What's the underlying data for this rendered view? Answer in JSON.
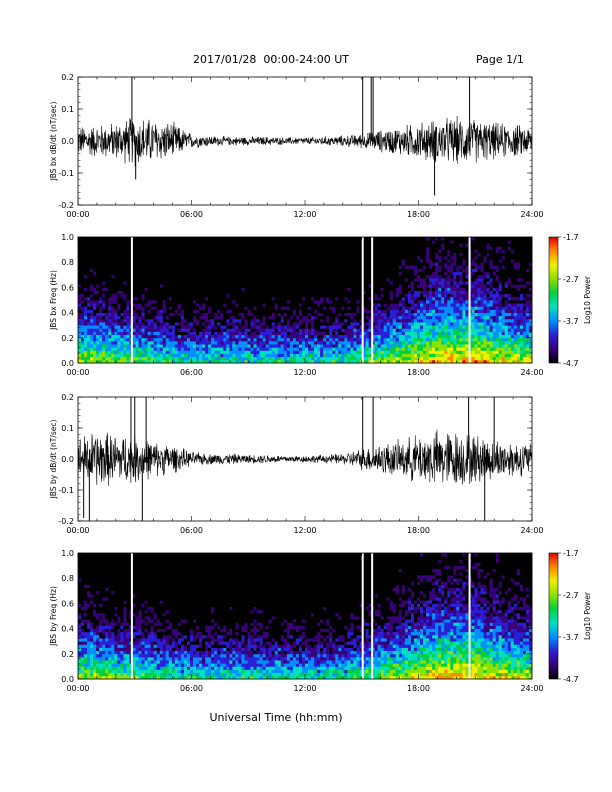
{
  "header": {
    "title": "2017/01/28  00:00-24:00 UT",
    "page": "Page 1/1"
  },
  "xlabel": "Universal Time (hh:mm)",
  "colorbar": {
    "label": "Log10 Power",
    "ticks": [
      "-1.7",
      "-2.7",
      "-3.7",
      "-4.7"
    ],
    "range": [
      -4.7,
      -1.7
    ],
    "colors": [
      "#000000",
      "#3a007a",
      "#2a1fd6",
      "#0090ff",
      "#00e0c0",
      "#00d040",
      "#90e000",
      "#f0f000",
      "#ff8800",
      "#e00000"
    ]
  },
  "chart_data": [
    {
      "type": "line",
      "panel": "jbs-bx-dbdt",
      "ylabel": "JBS bx dB/dt (nT/sec)",
      "xlim": [
        0,
        24
      ],
      "ylim": [
        -0.2,
        0.2
      ],
      "xticks": [
        "00:00",
        "06:00",
        "12:00",
        "18:00",
        "24:00"
      ],
      "yticks": [
        "0.2",
        "0.1",
        "0.0",
        "-0.1",
        "-0.2"
      ],
      "x": [
        0,
        1,
        2,
        3,
        4,
        5,
        6,
        7,
        8,
        9,
        10,
        11,
        12,
        13,
        14,
        15,
        16,
        17,
        18,
        19,
        20,
        21,
        22,
        23,
        24
      ],
      "envelope": [
        0.04,
        0.045,
        0.05,
        0.07,
        0.06,
        0.05,
        0.02,
        0.015,
        0.012,
        0.012,
        0.012,
        0.01,
        0.01,
        0.012,
        0.015,
        0.02,
        0.03,
        0.04,
        0.05,
        0.06,
        0.065,
        0.06,
        0.05,
        0.045,
        0.04
      ],
      "spikes": [
        [
          2.85,
          0.2
        ],
        [
          3.05,
          -0.12
        ],
        [
          15.05,
          0.2
        ],
        [
          15.5,
          0.2
        ],
        [
          15.6,
          0.2
        ],
        [
          18.85,
          -0.17
        ],
        [
          20.7,
          0.2
        ]
      ]
    },
    {
      "type": "heatmap",
      "panel": "jbs-bx-freq",
      "ylabel": "JBS bx Freq (Hz)",
      "xlim": [
        0,
        24
      ],
      "ylim": [
        0,
        1.0
      ],
      "xticks": [
        "00:00",
        "06:00",
        "12:00",
        "18:00",
        "24:00"
      ],
      "yticks": [
        "1.0",
        "0.8",
        "0.6",
        "0.4",
        "0.2",
        "0.0"
      ],
      "gaps": [
        2.85,
        15.05,
        15.55,
        20.7
      ]
    },
    {
      "type": "line",
      "panel": "jbs-by-dbdt",
      "ylabel": "JBS by dB/dt (nT/sec)",
      "xlim": [
        0,
        24
      ],
      "ylim": [
        -0.2,
        0.2
      ],
      "xticks": [
        "00:00",
        "06:00",
        "12:00",
        "18:00",
        "24:00"
      ],
      "yticks": [
        "0.2",
        "0.1",
        "0.0",
        "-0.1",
        "-0.2"
      ],
      "x": [
        0,
        1,
        2,
        3,
        4,
        5,
        6,
        7,
        8,
        9,
        10,
        11,
        12,
        13,
        14,
        15,
        16,
        17,
        18,
        19,
        20,
        21,
        22,
        23,
        24
      ],
      "envelope": [
        0.06,
        0.08,
        0.07,
        0.07,
        0.05,
        0.04,
        0.02,
        0.015,
        0.015,
        0.012,
        0.012,
        0.01,
        0.01,
        0.012,
        0.015,
        0.03,
        0.045,
        0.05,
        0.07,
        0.08,
        0.08,
        0.07,
        0.06,
        0.05,
        0.045
      ],
      "spikes": [
        [
          0.3,
          -0.19
        ],
        [
          0.6,
          -0.2
        ],
        [
          2.8,
          0.2
        ],
        [
          3.0,
          0.2
        ],
        [
          3.4,
          -0.2
        ],
        [
          3.6,
          0.2
        ],
        [
          15.05,
          0.2
        ],
        [
          15.6,
          0.2
        ],
        [
          20.65,
          0.2
        ],
        [
          21.5,
          -0.2
        ],
        [
          22.0,
          0.2
        ]
      ]
    },
    {
      "type": "heatmap",
      "panel": "jbs-by-freq",
      "ylabel": "JBS by Freq (Hz)",
      "xlim": [
        0,
        24
      ],
      "ylim": [
        0,
        1.0
      ],
      "xticks": [
        "00:00",
        "06:00",
        "12:00",
        "18:00",
        "24:00"
      ],
      "yticks": [
        "1.0",
        "0.8",
        "0.6",
        "0.4",
        "0.2",
        "0.0"
      ],
      "gaps": [
        2.85,
        15.05,
        15.55,
        20.7
      ]
    }
  ]
}
